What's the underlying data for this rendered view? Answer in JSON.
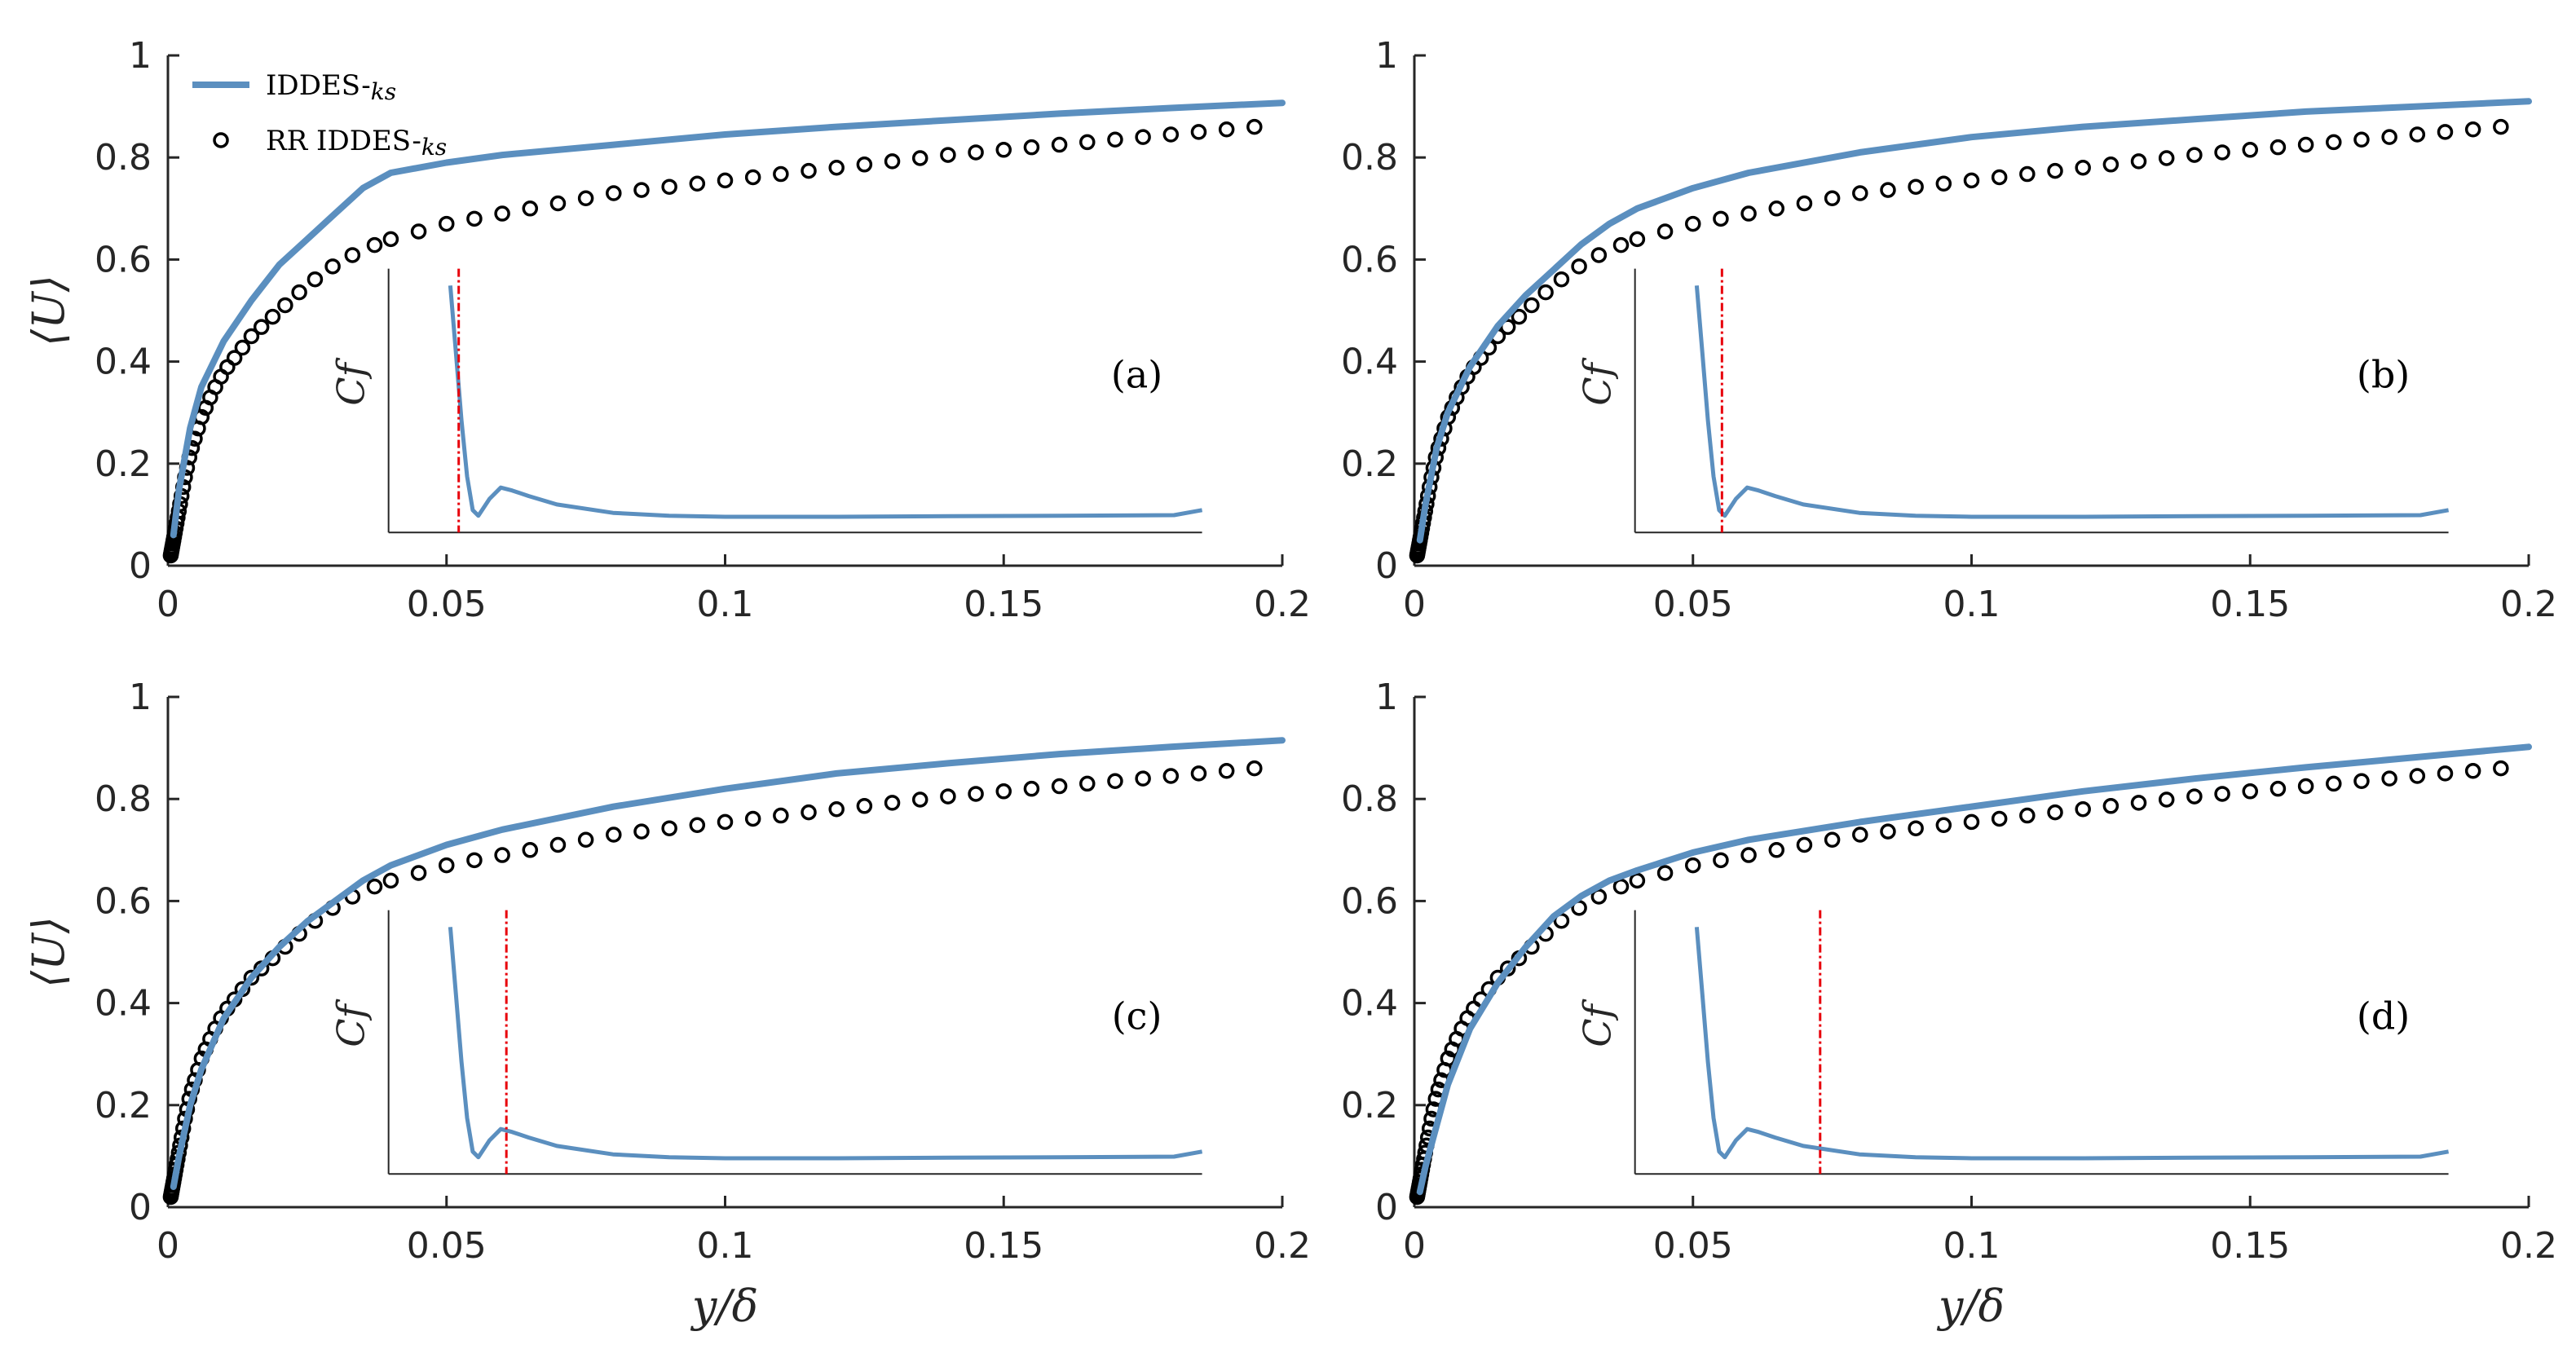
{
  "chart_data": [
    {
      "type": "line",
      "panel_label": "(a)",
      "xlim": [
        0,
        0.2
      ],
      "ylim": [
        0,
        1
      ],
      "xticks": [
        "0",
        "0.05",
        "0.1",
        "0.15",
        "0.2"
      ],
      "yticks": [
        "0",
        "0.2",
        "0.4",
        "0.6",
        "0.8",
        "1"
      ],
      "ylabel": "⟨U⟩",
      "xlabel": "",
      "legend": [
        {
          "label": "IDDES-",
          "sub": "ks",
          "marker": "line"
        },
        {
          "label": "RR IDDES-",
          "sub": "ks",
          "marker": "circle"
        }
      ],
      "series": [
        {
          "name": "IDDES-ks",
          "x": [
            0.001,
            0.002,
            0.004,
            0.006,
            0.01,
            0.015,
            0.02,
            0.025,
            0.03,
            0.035,
            0.04,
            0.05,
            0.06,
            0.08,
            0.1,
            0.12,
            0.14,
            0.16,
            0.18,
            0.2
          ],
          "y": [
            0.06,
            0.15,
            0.27,
            0.35,
            0.44,
            0.52,
            0.59,
            0.64,
            0.69,
            0.74,
            0.77,
            0.79,
            0.805,
            0.825,
            0.845,
            0.86,
            0.873,
            0.886,
            0.897,
            0.907
          ]
        },
        {
          "name": "RR IDDES-ks",
          "x": [
            0.0005,
            0.001,
            0.002,
            0.003,
            0.004,
            0.006,
            0.008,
            0.01,
            0.015,
            0.02,
            0.025,
            0.03,
            0.035,
            0.04,
            0.05,
            0.06,
            0.08,
            0.1,
            0.12,
            0.14,
            0.16,
            0.18,
            0.2
          ],
          "y": [
            0.02,
            0.05,
            0.11,
            0.17,
            0.22,
            0.29,
            0.34,
            0.38,
            0.45,
            0.5,
            0.55,
            0.59,
            0.62,
            0.64,
            0.67,
            0.69,
            0.73,
            0.755,
            0.78,
            0.805,
            0.825,
            0.845,
            0.865
          ]
        }
      ],
      "inset": {
        "ylabel": "Cf",
        "cf_x": [
          0.051,
          0.052,
          0.053,
          0.054,
          0.055,
          0.056,
          0.058,
          0.06,
          0.062,
          0.065,
          0.07,
          0.08,
          0.09,
          0.1,
          0.12,
          0.14,
          0.16,
          0.18,
          0.185
        ],
        "cf_y": [
          0.54,
          0.42,
          0.3,
          0.2,
          0.14,
          0.13,
          0.16,
          0.18,
          0.175,
          0.165,
          0.15,
          0.135,
          0.13,
          0.128,
          0.128,
          0.129,
          0.13,
          0.131,
          0.14
        ],
        "marker_x": 0.0525
      }
    },
    {
      "type": "line",
      "panel_label": "(b)",
      "xlim": [
        0,
        0.2
      ],
      "ylim": [
        0,
        1
      ],
      "xticks": [
        "0",
        "0.05",
        "0.1",
        "0.15",
        "0.2"
      ],
      "yticks": [
        "0",
        "0.2",
        "0.4",
        "0.6",
        "0.8",
        "1"
      ],
      "ylabel": "",
      "xlabel": "",
      "series": [
        {
          "name": "IDDES-ks",
          "x": [
            0.001,
            0.002,
            0.004,
            0.006,
            0.01,
            0.015,
            0.02,
            0.025,
            0.03,
            0.035,
            0.04,
            0.05,
            0.06,
            0.08,
            0.1,
            0.12,
            0.14,
            0.16,
            0.18,
            0.2
          ],
          "y": [
            0.05,
            0.12,
            0.23,
            0.3,
            0.39,
            0.47,
            0.53,
            0.58,
            0.63,
            0.67,
            0.7,
            0.74,
            0.77,
            0.81,
            0.84,
            0.86,
            0.875,
            0.89,
            0.9,
            0.91
          ]
        },
        {
          "name": "RR IDDES-ks",
          "x": [
            0.0005,
            0.001,
            0.002,
            0.003,
            0.004,
            0.006,
            0.008,
            0.01,
            0.015,
            0.02,
            0.025,
            0.03,
            0.035,
            0.04,
            0.05,
            0.06,
            0.08,
            0.1,
            0.12,
            0.14,
            0.16,
            0.18,
            0.2
          ],
          "y": [
            0.02,
            0.05,
            0.11,
            0.17,
            0.22,
            0.29,
            0.34,
            0.38,
            0.45,
            0.5,
            0.55,
            0.59,
            0.62,
            0.64,
            0.67,
            0.69,
            0.73,
            0.755,
            0.78,
            0.805,
            0.825,
            0.845,
            0.865
          ]
        }
      ],
      "inset": {
        "ylabel": "Cf",
        "cf_x": [
          0.051,
          0.052,
          0.053,
          0.054,
          0.055,
          0.056,
          0.058,
          0.06,
          0.062,
          0.065,
          0.07,
          0.08,
          0.09,
          0.1,
          0.12,
          0.14,
          0.16,
          0.18,
          0.185
        ],
        "cf_y": [
          0.54,
          0.42,
          0.3,
          0.2,
          0.14,
          0.13,
          0.16,
          0.18,
          0.175,
          0.165,
          0.15,
          0.135,
          0.13,
          0.128,
          0.128,
          0.129,
          0.13,
          0.131,
          0.14
        ],
        "marker_x": 0.0555
      }
    },
    {
      "type": "line",
      "panel_label": "(c)",
      "xlim": [
        0,
        0.2
      ],
      "ylim": [
        0,
        1
      ],
      "xticks": [
        "0",
        "0.05",
        "0.1",
        "0.15",
        "0.2"
      ],
      "yticks": [
        "0",
        "0.2",
        "0.4",
        "0.6",
        "0.8",
        "1"
      ],
      "ylabel": "⟨U⟩",
      "xlabel": "y/δ",
      "series": [
        {
          "name": "IDDES-ks",
          "x": [
            0.001,
            0.002,
            0.004,
            0.006,
            0.01,
            0.015,
            0.02,
            0.025,
            0.03,
            0.035,
            0.04,
            0.05,
            0.06,
            0.08,
            0.1,
            0.12,
            0.14,
            0.16,
            0.18,
            0.2
          ],
          "y": [
            0.04,
            0.1,
            0.2,
            0.27,
            0.37,
            0.45,
            0.51,
            0.56,
            0.6,
            0.64,
            0.67,
            0.71,
            0.74,
            0.785,
            0.82,
            0.85,
            0.87,
            0.888,
            0.902,
            0.915
          ]
        },
        {
          "name": "RR IDDES-ks",
          "x": [
            0.0005,
            0.001,
            0.002,
            0.003,
            0.004,
            0.006,
            0.008,
            0.01,
            0.015,
            0.02,
            0.025,
            0.03,
            0.035,
            0.04,
            0.05,
            0.06,
            0.08,
            0.1,
            0.12,
            0.14,
            0.16,
            0.18,
            0.2
          ],
          "y": [
            0.02,
            0.05,
            0.11,
            0.17,
            0.22,
            0.29,
            0.34,
            0.38,
            0.45,
            0.5,
            0.55,
            0.59,
            0.62,
            0.64,
            0.67,
            0.69,
            0.73,
            0.755,
            0.78,
            0.805,
            0.825,
            0.845,
            0.865
          ]
        }
      ],
      "inset": {
        "ylabel": "Cf",
        "cf_x": [
          0.051,
          0.052,
          0.053,
          0.054,
          0.055,
          0.056,
          0.058,
          0.06,
          0.062,
          0.065,
          0.07,
          0.08,
          0.09,
          0.1,
          0.12,
          0.14,
          0.16,
          0.18,
          0.185
        ],
        "cf_y": [
          0.54,
          0.42,
          0.3,
          0.2,
          0.14,
          0.13,
          0.16,
          0.18,
          0.175,
          0.165,
          0.15,
          0.135,
          0.13,
          0.128,
          0.128,
          0.129,
          0.13,
          0.131,
          0.14
        ],
        "marker_x": 0.061
      }
    },
    {
      "type": "line",
      "panel_label": "(d)",
      "xlim": [
        0,
        0.2
      ],
      "ylim": [
        0,
        1
      ],
      "xticks": [
        "0",
        "0.05",
        "0.1",
        "0.15",
        "0.2"
      ],
      "yticks": [
        "0",
        "0.2",
        "0.4",
        "0.6",
        "0.8",
        "1"
      ],
      "ylabel": "",
      "xlabel": "y/δ",
      "series": [
        {
          "name": "IDDES-ks",
          "x": [
            0.001,
            0.002,
            0.004,
            0.006,
            0.01,
            0.015,
            0.02,
            0.025,
            0.03,
            0.035,
            0.04,
            0.05,
            0.06,
            0.08,
            0.1,
            0.12,
            0.14,
            0.16,
            0.18,
            0.2
          ],
          "y": [
            0.03,
            0.08,
            0.16,
            0.24,
            0.35,
            0.44,
            0.51,
            0.57,
            0.61,
            0.64,
            0.66,
            0.695,
            0.72,
            0.755,
            0.785,
            0.815,
            0.84,
            0.862,
            0.882,
            0.902
          ]
        },
        {
          "name": "RR IDDES-ks",
          "x": [
            0.0005,
            0.001,
            0.002,
            0.003,
            0.004,
            0.006,
            0.008,
            0.01,
            0.015,
            0.02,
            0.025,
            0.03,
            0.035,
            0.04,
            0.05,
            0.06,
            0.08,
            0.1,
            0.12,
            0.14,
            0.16,
            0.18,
            0.2
          ],
          "y": [
            0.02,
            0.05,
            0.11,
            0.17,
            0.22,
            0.29,
            0.34,
            0.38,
            0.45,
            0.5,
            0.55,
            0.59,
            0.62,
            0.64,
            0.67,
            0.69,
            0.73,
            0.755,
            0.78,
            0.805,
            0.825,
            0.845,
            0.865
          ]
        }
      ],
      "inset": {
        "ylabel": "Cf",
        "cf_x": [
          0.051,
          0.052,
          0.053,
          0.054,
          0.055,
          0.056,
          0.058,
          0.06,
          0.062,
          0.065,
          0.07,
          0.08,
          0.09,
          0.1,
          0.12,
          0.14,
          0.16,
          0.18,
          0.185
        ],
        "cf_y": [
          0.54,
          0.42,
          0.3,
          0.2,
          0.14,
          0.13,
          0.16,
          0.18,
          0.175,
          0.165,
          0.15,
          0.135,
          0.13,
          0.128,
          0.128,
          0.129,
          0.13,
          0.131,
          0.14
        ],
        "marker_x": 0.073
      }
    }
  ],
  "colors": {
    "iddes_line": "#5b8fbf",
    "rr_marker": "#000000",
    "marker_line": "#e8000b",
    "axis": "#262626"
  }
}
